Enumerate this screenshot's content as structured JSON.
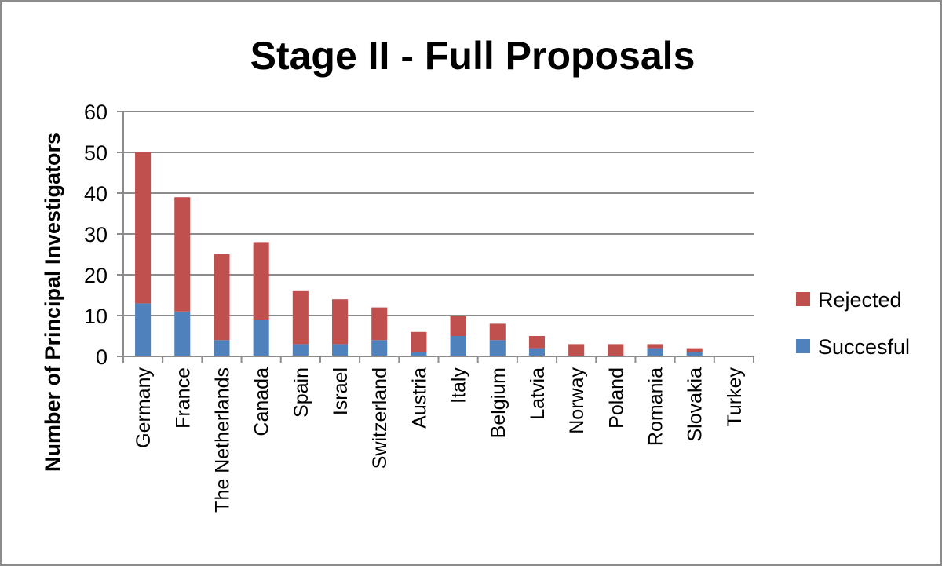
{
  "chart_data": {
    "type": "bar",
    "stacked": true,
    "title": "Stage II - Full Proposals",
    "xlabel": "",
    "ylabel": "Number of Principal Investigators",
    "ylim": [
      0,
      60
    ],
    "yticks": [
      0,
      10,
      20,
      30,
      40,
      50,
      60
    ],
    "grid": true,
    "legend_position": "right",
    "categories": [
      "Germany",
      "France",
      "The Netherlands",
      "Canada",
      "Spain",
      "Israel",
      "Switzerland",
      "Austria",
      "Italy",
      "Belgium",
      "Latvia",
      "Norway",
      "Poland",
      "Romania",
      "Slovakia",
      "Turkey"
    ],
    "series": [
      {
        "name": "Succesful",
        "color": "#4f81bd",
        "values": [
          13,
          11,
          4,
          9,
          3,
          3,
          4,
          1,
          5,
          4,
          2,
          0,
          0,
          2,
          1,
          0
        ]
      },
      {
        "name": "Rejected",
        "color": "#c0504d",
        "values": [
          37,
          28,
          21,
          19,
          13,
          11,
          8,
          5,
          5,
          4,
          3,
          3,
          3,
          1,
          1,
          0
        ]
      }
    ],
    "legend_order": [
      "Rejected",
      "Succesful"
    ]
  },
  "colors": {
    "gridline": "#8c8c8c",
    "axis": "#8c8c8c",
    "frame": "#8c8c8c"
  }
}
